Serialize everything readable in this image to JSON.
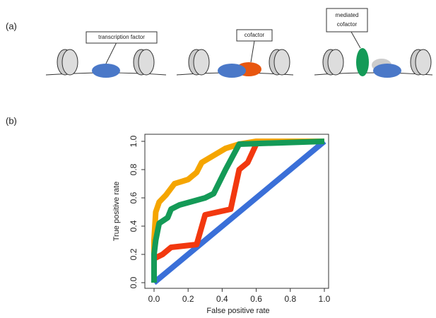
{
  "panel_labels": [
    "(a)",
    "(b)"
  ],
  "diagram": {
    "labels": [
      [
        "transcription factor"
      ],
      [
        "cofactor"
      ],
      [
        "mediated",
        "cofactor"
      ]
    ]
  },
  "chart_data": {
    "type": "line",
    "x_label": "False positive rate",
    "y_label": "True positive rate",
    "xlim": [
      0,
      1
    ],
    "ylim": [
      0,
      1
    ],
    "xticks": [
      {
        "value": 0,
        "label": "0.0"
      },
      0.2,
      0.4,
      0.6,
      0.8,
      {
        "value": 1,
        "label": "1.0"
      }
    ],
    "yticks": [
      {
        "value": 0,
        "label": "0.0"
      },
      0.2,
      0.4,
      0.6,
      0.8,
      {
        "value": 1,
        "label": "1.0"
      }
    ],
    "series": [
      {
        "color": "#3a6fd8",
        "x": [
          0,
          1
        ],
        "values": [
          0,
          1
        ]
      },
      {
        "color": "#f2380f",
        "x": [
          0,
          0,
          0.05,
          0.1,
          0.25,
          0.3,
          0.45,
          0.5,
          0.55,
          0.6,
          0.65,
          1
        ],
        "values": [
          0,
          0.17,
          0.2,
          0.25,
          0.27,
          0.48,
          0.52,
          0.8,
          0.85,
          0.98,
          1,
          1
        ]
      },
      {
        "color": "#f5a500",
        "x": [
          0,
          0,
          0.01,
          0.03,
          0.07,
          0.12,
          0.2,
          0.25,
          0.28,
          0.35,
          0.42,
          0.5,
          0.6,
          1
        ],
        "values": [
          0,
          0.3,
          0.5,
          0.57,
          0.62,
          0.7,
          0.73,
          0.78,
          0.85,
          0.9,
          0.95,
          0.98,
          1,
          1
        ]
      },
      {
        "color": "#149a57",
        "x": [
          0,
          0,
          0.01,
          0.03,
          0.08,
          0.1,
          0.15,
          0.3,
          0.35,
          0.42,
          0.5,
          1
        ],
        "values": [
          0,
          0.2,
          0.3,
          0.42,
          0.46,
          0.52,
          0.55,
          0.6,
          0.63,
          0.8,
          0.98,
          1
        ]
      }
    ]
  }
}
